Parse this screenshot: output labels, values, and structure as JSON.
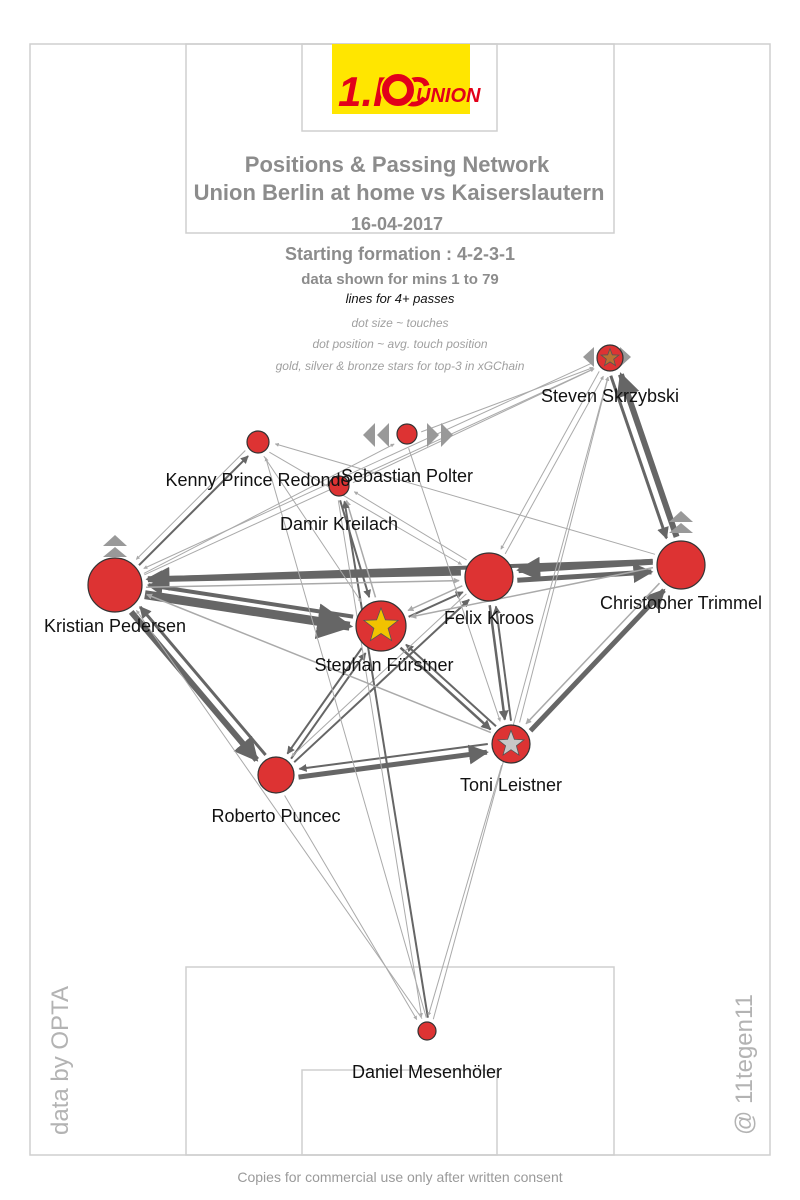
{
  "header": {
    "title_line1": "Positions & Passing Network",
    "title_line2": "Union Berlin at home vs Kaiserslautern",
    "date": "16-04-2017",
    "formation": "Starting formation : 4-2-3-1",
    "minutes": "data shown for mins 1 to 79",
    "lines_note": "lines for 4+ passes",
    "legend_size": "dot size ~ touches",
    "legend_position": "dot position ~ avg. touch position",
    "legend_stars": "gold, silver & bronze stars for top-3 in xGChain"
  },
  "logo": {
    "text_left": "1.FC",
    "text_right": "UNION",
    "colors": {
      "background": "#ffe600",
      "primary": "#e2001a"
    }
  },
  "side_labels": {
    "left": "data by OPTA",
    "right": "@ 11tegen11"
  },
  "footer": "Copies for commercial use only after written consent",
  "colors": {
    "dot": "#dd3333",
    "dot_stroke": "#333333",
    "pass_line": "#666666",
    "thin_line": "#aaaaaa",
    "gold": "#f2c200",
    "silver": "#c8c8c8",
    "bronze": "#b87333",
    "marker": "#999999"
  },
  "players": [
    {
      "id": "mesenholer",
      "name": "Daniel Mesenhöler"
    },
    {
      "id": "pedersen",
      "name": "Kristian Pedersen"
    },
    {
      "id": "puncec",
      "name": "Roberto Puncec"
    },
    {
      "id": "leistner",
      "name": "Toni Leistner",
      "star": "silver"
    },
    {
      "id": "trimmel",
      "name": "Christopher Trimmel"
    },
    {
      "id": "furstner",
      "name": "Stephan Fürstner",
      "star": "gold"
    },
    {
      "id": "kroos",
      "name": "Felix Kroos"
    },
    {
      "id": "kreilach",
      "name": "Damir Kreilach"
    },
    {
      "id": "prince",
      "name": "Kenny Prince Redondo"
    },
    {
      "id": "polter",
      "name": "Sebastian Polter"
    },
    {
      "id": "skrzybski",
      "name": "Steven Skrzybski",
      "star": "bronze"
    }
  ]
}
